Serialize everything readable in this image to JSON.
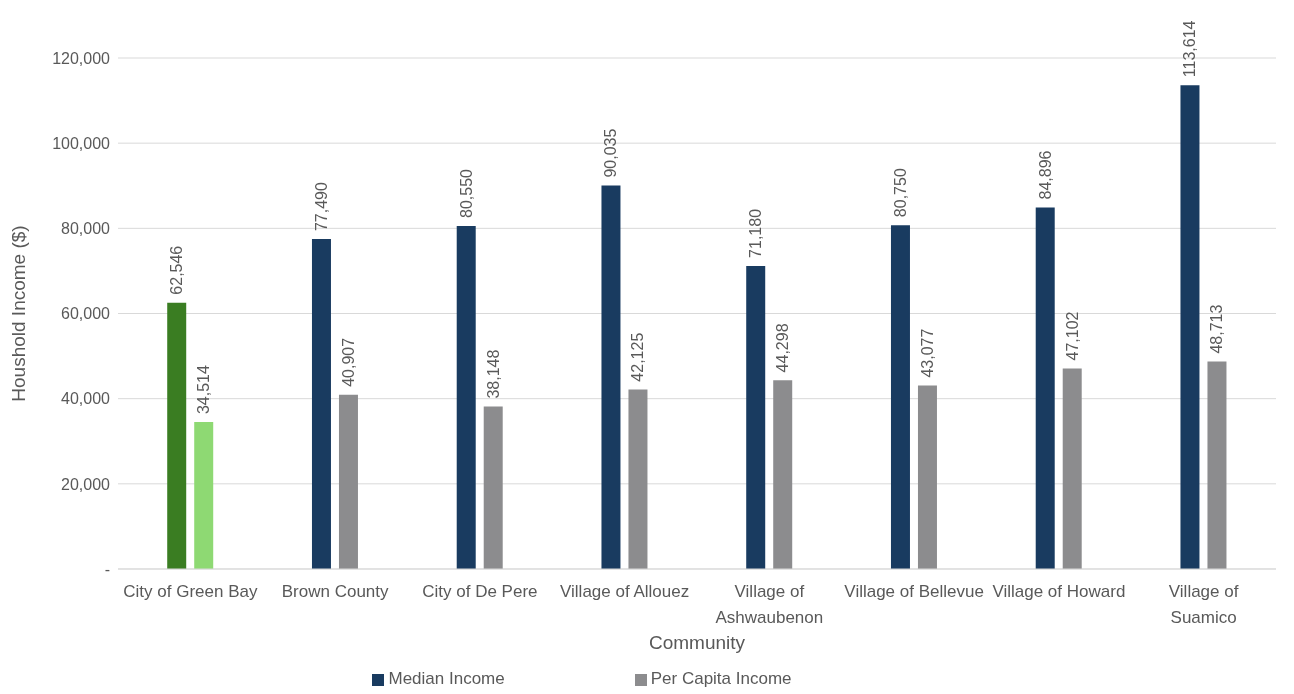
{
  "chart_data": {
    "type": "bar",
    "xlabel": "Community",
    "ylabel": "Houshold Income ($)",
    "categories": [
      "City of Green Bay",
      "Brown County",
      "City of De Pere",
      "Village of Allouez",
      "Village of Ashwaubenon",
      "Village of Bellevue",
      "Village of Howard",
      "Village of Suamico"
    ],
    "series": [
      {
        "name": "Median Income",
        "color": "#193b60",
        "colors": [
          "#3a7d22",
          "#193b60",
          "#193b60",
          "#193b60",
          "#193b60",
          "#193b60",
          "#193b60",
          "#193b60"
        ],
        "values": [
          62546,
          77490,
          80550,
          90035,
          71180,
          80750,
          84896,
          113614
        ],
        "value_labels": [
          "62,546",
          "77,490",
          "80,550",
          "90,035",
          "71,180",
          "80,750",
          "84,896",
          "113,614"
        ]
      },
      {
        "name": "Per Capita Income",
        "color": "#8c8c8e",
        "colors": [
          "#8ed973",
          "#8c8c8e",
          "#8c8c8e",
          "#8c8c8e",
          "#8c8c8e",
          "#8c8c8e",
          "#8c8c8e",
          "#8c8c8e"
        ],
        "values": [
          34514,
          40907,
          38148,
          42125,
          44298,
          43077,
          47102,
          48713
        ],
        "value_labels": [
          "34,514",
          "40,907",
          "38,148",
          "42,125",
          "44,298",
          "43,077",
          "47,102",
          "48,713"
        ]
      }
    ],
    "ylim": [
      0,
      120000
    ],
    "yticks": [
      {
        "value": 0,
        "label": "-"
      },
      {
        "value": 20000,
        "label": "20,000"
      },
      {
        "value": 40000,
        "label": "40,000"
      },
      {
        "value": 60000,
        "label": "60,000"
      },
      {
        "value": 80000,
        "label": "80,000"
      },
      {
        "value": 100000,
        "label": "100,000"
      },
      {
        "value": 120000,
        "label": "120,000"
      }
    ],
    "grid": "y",
    "legend": "bottom"
  }
}
